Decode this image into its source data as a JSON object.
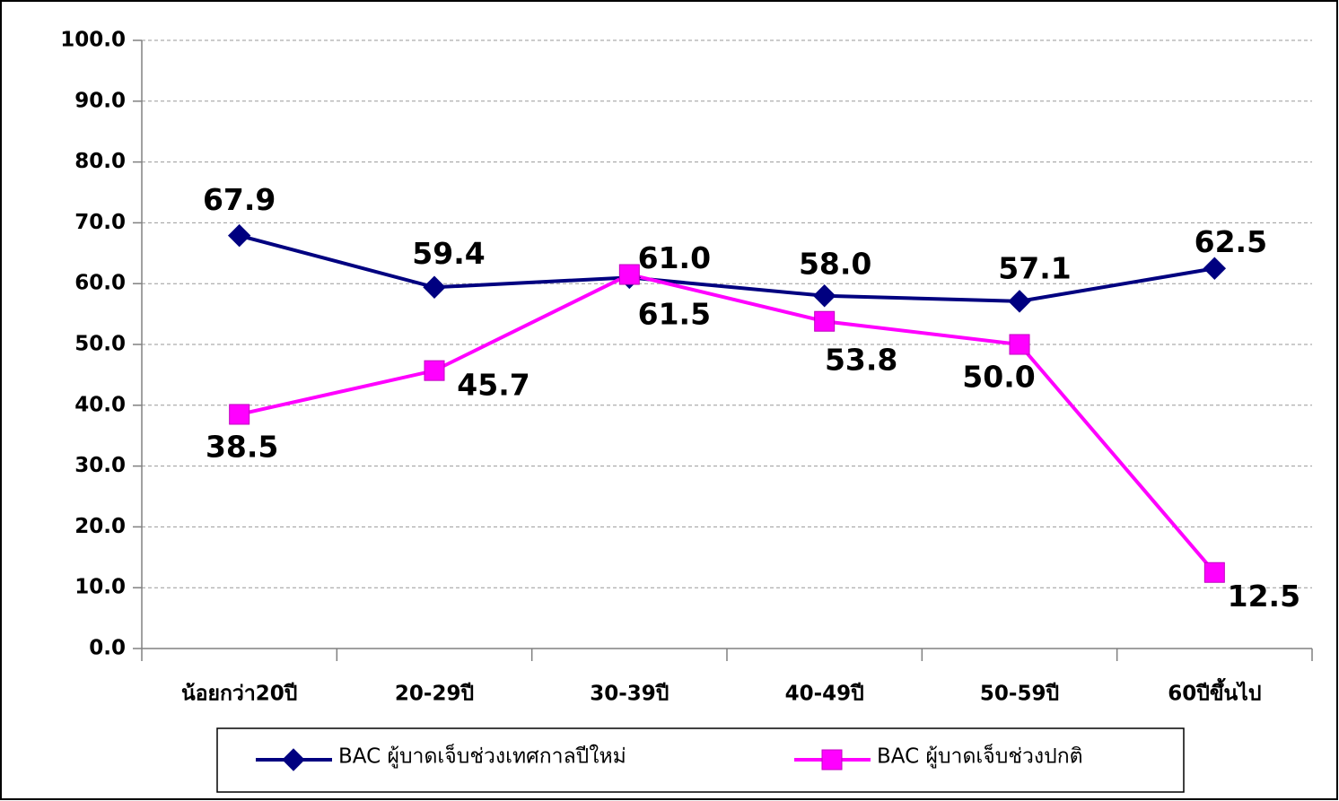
{
  "chart_data": {
    "type": "line",
    "categories": [
      "น้อยกว่า20ปี",
      "20-29ปี",
      "30-39ปี",
      "40-49ปี",
      "50-59ปี",
      "60ปีขึ้นไป"
    ],
    "series": [
      {
        "name": "BAC ผู้บาดเจ็บช่วงเทศกาลปีใหม่",
        "color": "#000080",
        "marker": "diamond",
        "values": [
          67.9,
          59.4,
          61.0,
          58.0,
          57.1,
          62.5
        ],
        "value_labels": [
          "67.9",
          "59.4",
          "61.0",
          "58.0",
          "57.1",
          "62.5"
        ]
      },
      {
        "name": "BAC ผู้บาดเจ็บช่วงปกติ",
        "color": "#ff00ff",
        "marker": "square",
        "values": [
          38.5,
          45.7,
          61.5,
          53.8,
          50.0,
          12.5
        ],
        "value_labels": [
          "38.5",
          "45.7",
          "61.5",
          "53.8",
          "50.0",
          "12.5"
        ]
      }
    ],
    "ylim": [
      0,
      100
    ],
    "yticks": [
      {
        "value": 0,
        "label": "0.0"
      },
      {
        "value": 10,
        "label": "10.0"
      },
      {
        "value": 20,
        "label": "20.0"
      },
      {
        "value": 30,
        "label": "30.0"
      },
      {
        "value": 40,
        "label": "40.0"
      },
      {
        "value": 50,
        "label": "50.0"
      },
      {
        "value": 60,
        "label": "60.0"
      },
      {
        "value": 70,
        "label": "70.0"
      },
      {
        "value": 80,
        "label": "80.0"
      },
      {
        "value": 90,
        "label": "90.0"
      },
      {
        "value": 100,
        "label": "100.0"
      }
    ],
    "grid": true,
    "legend": "bottom"
  }
}
